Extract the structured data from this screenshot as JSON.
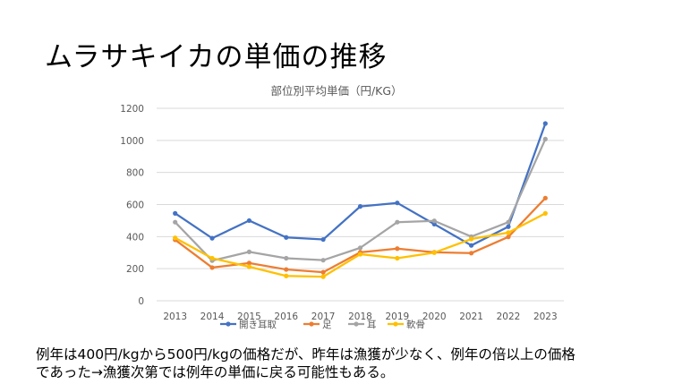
{
  "slide": {
    "title": "ムラサキイカの単価の推移",
    "note_line1": "例年は400円/kgから500円/kgの価格だが、昨年は漁獲が少なく、例年の倍以上の価格",
    "note_line2": "であった→漁獲次第では例年の単価に戻る可能性もある。"
  },
  "chart_data": {
    "type": "line",
    "title": "部位別平均単価（円/KG）",
    "xlabel": "",
    "ylabel": "",
    "categories": [
      "2013",
      "2014",
      "2015",
      "2016",
      "2017",
      "2018",
      "2019",
      "2020",
      "2021",
      "2022",
      "2023"
    ],
    "ylim": [
      0,
      1200
    ],
    "yticks": [
      0,
      200,
      400,
      600,
      800,
      1000,
      1200
    ],
    "grid": true,
    "legend_position": "bottom",
    "series": [
      {
        "name": "開き耳取",
        "color": "#4472c4",
        "values": [
          545,
          390,
          500,
          395,
          382,
          588,
          610,
          478,
          345,
          462,
          1105
        ]
      },
      {
        "name": "足",
        "color": "#ed7d31",
        "values": [
          380,
          207,
          235,
          195,
          178,
          302,
          325,
          302,
          297,
          398,
          640
        ]
      },
      {
        "name": "耳",
        "color": "#a5a5a5",
        "values": [
          490,
          250,
          305,
          265,
          253,
          330,
          490,
          498,
          400,
          490,
          1008
        ]
      },
      {
        "name": "軟骨",
        "color": "#ffc000",
        "values": [
          392,
          265,
          212,
          155,
          150,
          290,
          265,
          300,
          385,
          425,
          545
        ]
      }
    ]
  }
}
